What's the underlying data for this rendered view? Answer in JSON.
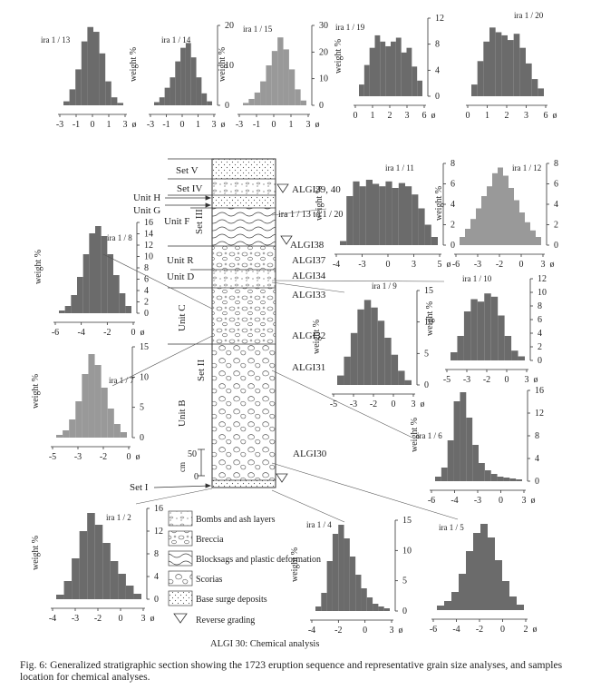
{
  "histograms": [
    {
      "id": "h13",
      "label": "ira 1 / 13",
      "ylabel": "",
      "yticks": [],
      "xticks": [
        "-3",
        "-1",
        "0",
        "1",
        "3",
        "ø"
      ],
      "shade": "#6b6b6b",
      "bars": [
        0.05,
        0.2,
        0.45,
        0.8,
        0.98,
        0.92,
        0.65,
        0.3,
        0.1,
        0.03
      ]
    },
    {
      "id": "h14",
      "label": "ira 1 / 14",
      "ylabel": "weight %",
      "yticks": [
        "20",
        "10",
        "0"
      ],
      "xticks": [
        "-3",
        "-1",
        "0",
        "1",
        "3",
        "ø"
      ],
      "shade": "#6b6b6b",
      "bars": [
        0.04,
        0.1,
        0.22,
        0.35,
        0.55,
        0.72,
        0.78,
        0.6,
        0.35,
        0.15,
        0.05
      ]
    },
    {
      "id": "h15",
      "label": "ira 1 / 15",
      "ylabel": "weight %",
      "yticks": [
        "30",
        "20",
        "10",
        "0"
      ],
      "xticks": [
        "-3",
        "-1",
        "0",
        "1",
        "3",
        "ø"
      ],
      "shade": "#999999",
      "bars": [
        0.03,
        0.08,
        0.16,
        0.3,
        0.5,
        0.68,
        0.85,
        0.7,
        0.45,
        0.2,
        0.06
      ]
    },
    {
      "id": "h19",
      "label": "ira 1 / 19",
      "ylabel": "weight %",
      "yticks": [
        "12",
        "8",
        "4",
        "0"
      ],
      "xticks": [
        "0",
        "1",
        "2",
        "3",
        "6",
        "ø"
      ],
      "shade": "#6b6b6b",
      "bars": [
        0.15,
        0.4,
        0.62,
        0.78,
        0.7,
        0.64,
        0.7,
        0.75,
        0.56,
        0.62,
        0.38,
        0.2
      ]
    },
    {
      "id": "h20",
      "label": "ira 1 / 20",
      "ylabel": "",
      "yticks": [],
      "xticks": [
        "0",
        "1",
        "2",
        "3",
        "6",
        "ø"
      ],
      "shade": "#6b6b6b",
      "bars": [
        0.15,
        0.45,
        0.7,
        0.88,
        0.82,
        0.78,
        0.72,
        0.8,
        0.62,
        0.42,
        0.22,
        0.1
      ]
    },
    {
      "id": "h11",
      "label": "ira 1 / 11",
      "ylabel": "weight %",
      "yticks": [
        "8",
        "6",
        "4",
        "2",
        "0"
      ],
      "xticks": [
        "-4",
        "-3",
        "0",
        "3",
        "5",
        "ø"
      ],
      "shade": "#6b6b6b",
      "bars": [
        0.05,
        0.6,
        0.78,
        0.72,
        0.8,
        0.75,
        0.72,
        0.78,
        0.7,
        0.76,
        0.72,
        0.62,
        0.45,
        0.25,
        0.1
      ]
    },
    {
      "id": "h12",
      "label": "ira 1 / 12",
      "ylabel": "weight %",
      "yticks": [
        "8",
        "6",
        "4",
        "2",
        "0"
      ],
      "xticks": [
        "-6",
        "-3",
        "-2",
        "0",
        "3",
        "ø"
      ],
      "shade": "#999999",
      "bars": [
        0.1,
        0.2,
        0.32,
        0.45,
        0.6,
        0.72,
        0.88,
        0.95,
        0.85,
        0.7,
        0.55,
        0.4,
        0.28,
        0.18,
        0.1
      ]
    },
    {
      "id": "h8",
      "label": "ira 1 / 8",
      "ylabel": "weight %",
      "yticks": [
        "16",
        "14",
        "12",
        "10",
        "8",
        "6",
        "4",
        "2",
        "0"
      ],
      "xticks": [
        "-6",
        "-4",
        "-2",
        "0",
        "ø"
      ],
      "shade": "#6b6b6b",
      "bars": [
        0.03,
        0.08,
        0.2,
        0.4,
        0.65,
        0.88,
        0.96,
        0.85,
        0.65,
        0.42,
        0.22,
        0.08
      ]
    },
    {
      "id": "h9",
      "label": "ira 1 / 9",
      "ylabel": "weight %",
      "yticks": [
        "15",
        "10",
        "5",
        "0"
      ],
      "xticks": [
        "-5",
        "-3",
        "-2",
        "0",
        "3",
        "ø"
      ],
      "shade": "#6b6b6b",
      "bars": [
        0.1,
        0.3,
        0.55,
        0.8,
        0.9,
        0.82,
        0.68,
        0.5,
        0.32,
        0.15,
        0.05
      ]
    },
    {
      "id": "h10",
      "label": "ira 1 / 10",
      "ylabel": "weight %",
      "yticks": [
        "12",
        "10",
        "8",
        "6",
        "4",
        "2",
        "0"
      ],
      "xticks": [
        "-5",
        "-3",
        "-2",
        "0",
        "3",
        "ø"
      ],
      "shade": "#6b6b6b",
      "bars": [
        0.1,
        0.3,
        0.6,
        0.75,
        0.72,
        0.82,
        0.78,
        0.55,
        0.3,
        0.12,
        0.05
      ]
    },
    {
      "id": "h7",
      "label": "ira 1 / 7",
      "ylabel": "weight %",
      "yticks": [
        "15",
        "10",
        "5",
        "0"
      ],
      "xticks": [
        "-5",
        "-3",
        "-2",
        "0",
        "ø"
      ],
      "shade": "#999999",
      "bars": [
        0.03,
        0.08,
        0.2,
        0.4,
        0.7,
        0.92,
        0.8,
        0.55,
        0.32,
        0.15,
        0.06
      ]
    },
    {
      "id": "h6",
      "label": "ira 1 / 6",
      "ylabel": "weight %",
      "yticks": [
        "16",
        "12",
        "8",
        "4",
        "0"
      ],
      "xticks": [
        "-6",
        "-4",
        "-3",
        "0",
        "3",
        "ø"
      ],
      "shade": "#6b6b6b",
      "bars": [
        0.05,
        0.15,
        0.45,
        0.88,
        0.98,
        0.7,
        0.4,
        0.2,
        0.12,
        0.08,
        0.05,
        0.04,
        0.03,
        0.02
      ]
    },
    {
      "id": "h2",
      "label": "ira 1 / 2",
      "ylabel": "weight %",
      "yticks": [
        "16",
        "12",
        "8",
        "4",
        "0"
      ],
      "xticks": [
        "-4",
        "-3",
        "-2",
        "0",
        "3",
        "ø"
      ],
      "shade": "#6b6b6b",
      "bars": [
        0.05,
        0.2,
        0.45,
        0.75,
        0.95,
        0.82,
        0.62,
        0.42,
        0.28,
        0.15,
        0.06
      ]
    },
    {
      "id": "h4",
      "label": "ira 1 / 4",
      "ylabel": "weight %",
      "yticks": [
        "15",
        "10",
        "5",
        "0"
      ],
      "xticks": [
        "-4",
        "-2",
        "0",
        "3",
        "ø"
      ],
      "shade": "#6b6b6b",
      "bars": [
        0.05,
        0.2,
        0.55,
        0.85,
        0.95,
        0.8,
        0.6,
        0.4,
        0.25,
        0.15,
        0.08,
        0.05,
        0.03
      ]
    },
    {
      "id": "h5",
      "label": "ira 1 / 5",
      "ylabel": "",
      "yticks": [],
      "xticks": [
        "-6",
        "-4",
        "-2",
        "0",
        "2",
        "ø"
      ],
      "shade": "#6b6b6b",
      "bars": [
        0.05,
        0.1,
        0.2,
        0.4,
        0.65,
        0.85,
        0.95,
        0.8,
        0.55,
        0.32,
        0.15,
        0.06
      ]
    }
  ],
  "column": {
    "left_labels": [
      "Set V",
      "Set IV",
      "Unit H",
      "Unit G",
      "Unit F",
      "Set III",
      "Unit R",
      "Unit D",
      "Unit C",
      "Set II",
      "Unit B",
      "Set I"
    ],
    "scale": {
      "top": "50",
      "bottom": "0",
      "unit": "cm"
    },
    "samples": [
      "ALGI39, 40",
      "ira 1 / 13 to 1 / 20",
      "ALGI38",
      "ALGI37",
      "ALGI34",
      "ALGI33",
      "ALGI32",
      "ALGI31",
      "ALGI30"
    ]
  },
  "legend": {
    "items": [
      "Bombs and ash layers",
      "Breccia",
      "Blocksags and plastic deformation",
      "Scorias",
      "Base surge deposits",
      "Reverse grading"
    ],
    "note": "ALGI 30: Chemical analysis"
  },
  "caption": "Fig. 6: Generalized stratigraphic section showing the 1723 eruption sequence and representative grain size analyses, and samples location for chemical analyses."
}
